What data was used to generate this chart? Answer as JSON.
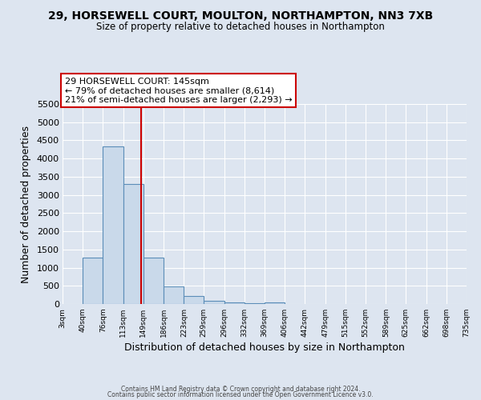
{
  "title": "29, HORSEWELL COURT, MOULTON, NORTHAMPTON, NN3 7XB",
  "subtitle": "Size of property relative to detached houses in Northampton",
  "xlabel": "Distribution of detached houses by size in Northampton",
  "ylabel": "Number of detached properties",
  "bar_color": "#c9d9ea",
  "bar_edgecolor": "#5b8db8",
  "background_color": "#dde5f0",
  "grid_color": "#ffffff",
  "bin_edges": [
    3,
    40,
    76,
    113,
    149,
    186,
    223,
    259,
    296,
    332,
    369,
    406,
    442,
    479,
    515,
    552,
    589,
    625,
    662,
    698,
    735
  ],
  "bin_labels": [
    "3sqm",
    "40sqm",
    "76sqm",
    "113sqm",
    "149sqm",
    "186sqm",
    "223sqm",
    "259sqm",
    "296sqm",
    "332sqm",
    "369sqm",
    "406sqm",
    "442sqm",
    "479sqm",
    "515sqm",
    "552sqm",
    "589sqm",
    "625sqm",
    "662sqm",
    "698sqm",
    "735sqm"
  ],
  "bar_heights": [
    0,
    1270,
    4330,
    3300,
    1280,
    480,
    220,
    80,
    55,
    30,
    50,
    0,
    0,
    0,
    0,
    0,
    0,
    0,
    0,
    0
  ],
  "ylim": [
    0,
    5500
  ],
  "yticks": [
    0,
    500,
    1000,
    1500,
    2000,
    2500,
    3000,
    3500,
    4000,
    4500,
    5000,
    5500
  ],
  "vline_x": 145,
  "vline_color": "#cc0000",
  "annotation_title": "29 HORSEWELL COURT: 145sqm",
  "annotation_line1": "← 79% of detached houses are smaller (8,614)",
  "annotation_line2": "21% of semi-detached houses are larger (2,293) →",
  "annotation_box_edgecolor": "#cc0000",
  "footer1": "Contains HM Land Registry data © Crown copyright and database right 2024.",
  "footer2": "Contains public sector information licensed under the Open Government Licence v3.0."
}
